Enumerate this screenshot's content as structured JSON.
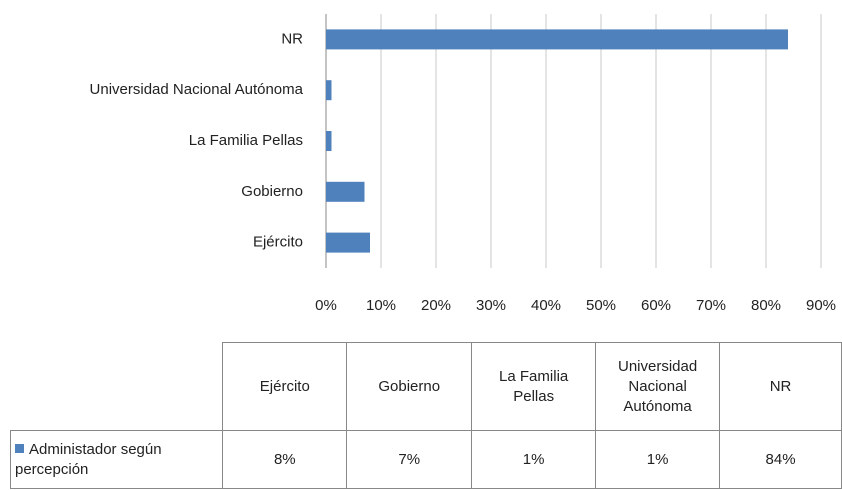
{
  "chart_data": {
    "type": "hbar",
    "categories": [
      "Ejército",
      "Gobierno",
      "La Familia Pellas",
      "Universidad Nacional Autónoma",
      "NR"
    ],
    "series": [
      {
        "name": "Administador según percepción",
        "color": "#4f81bd",
        "values": [
          8,
          7,
          1,
          1,
          84
        ],
        "value_labels": [
          "8%",
          "7%",
          "1%",
          "1%",
          "84%"
        ]
      }
    ],
    "xlim": [
      0,
      90
    ],
    "xticks": [
      {
        "value": 0,
        "label": "0%"
      },
      {
        "value": 10,
        "label": "10%"
      },
      {
        "value": 20,
        "label": "20%"
      },
      {
        "value": 30,
        "label": "30%"
      },
      {
        "value": 40,
        "label": "40%"
      },
      {
        "value": 50,
        "label": "50%"
      },
      {
        "value": 60,
        "label": "60%"
      },
      {
        "value": 70,
        "label": "70%"
      },
      {
        "value": 80,
        "label": "80%"
      },
      {
        "value": 90,
        "label": "90%"
      }
    ],
    "grid": true
  }
}
